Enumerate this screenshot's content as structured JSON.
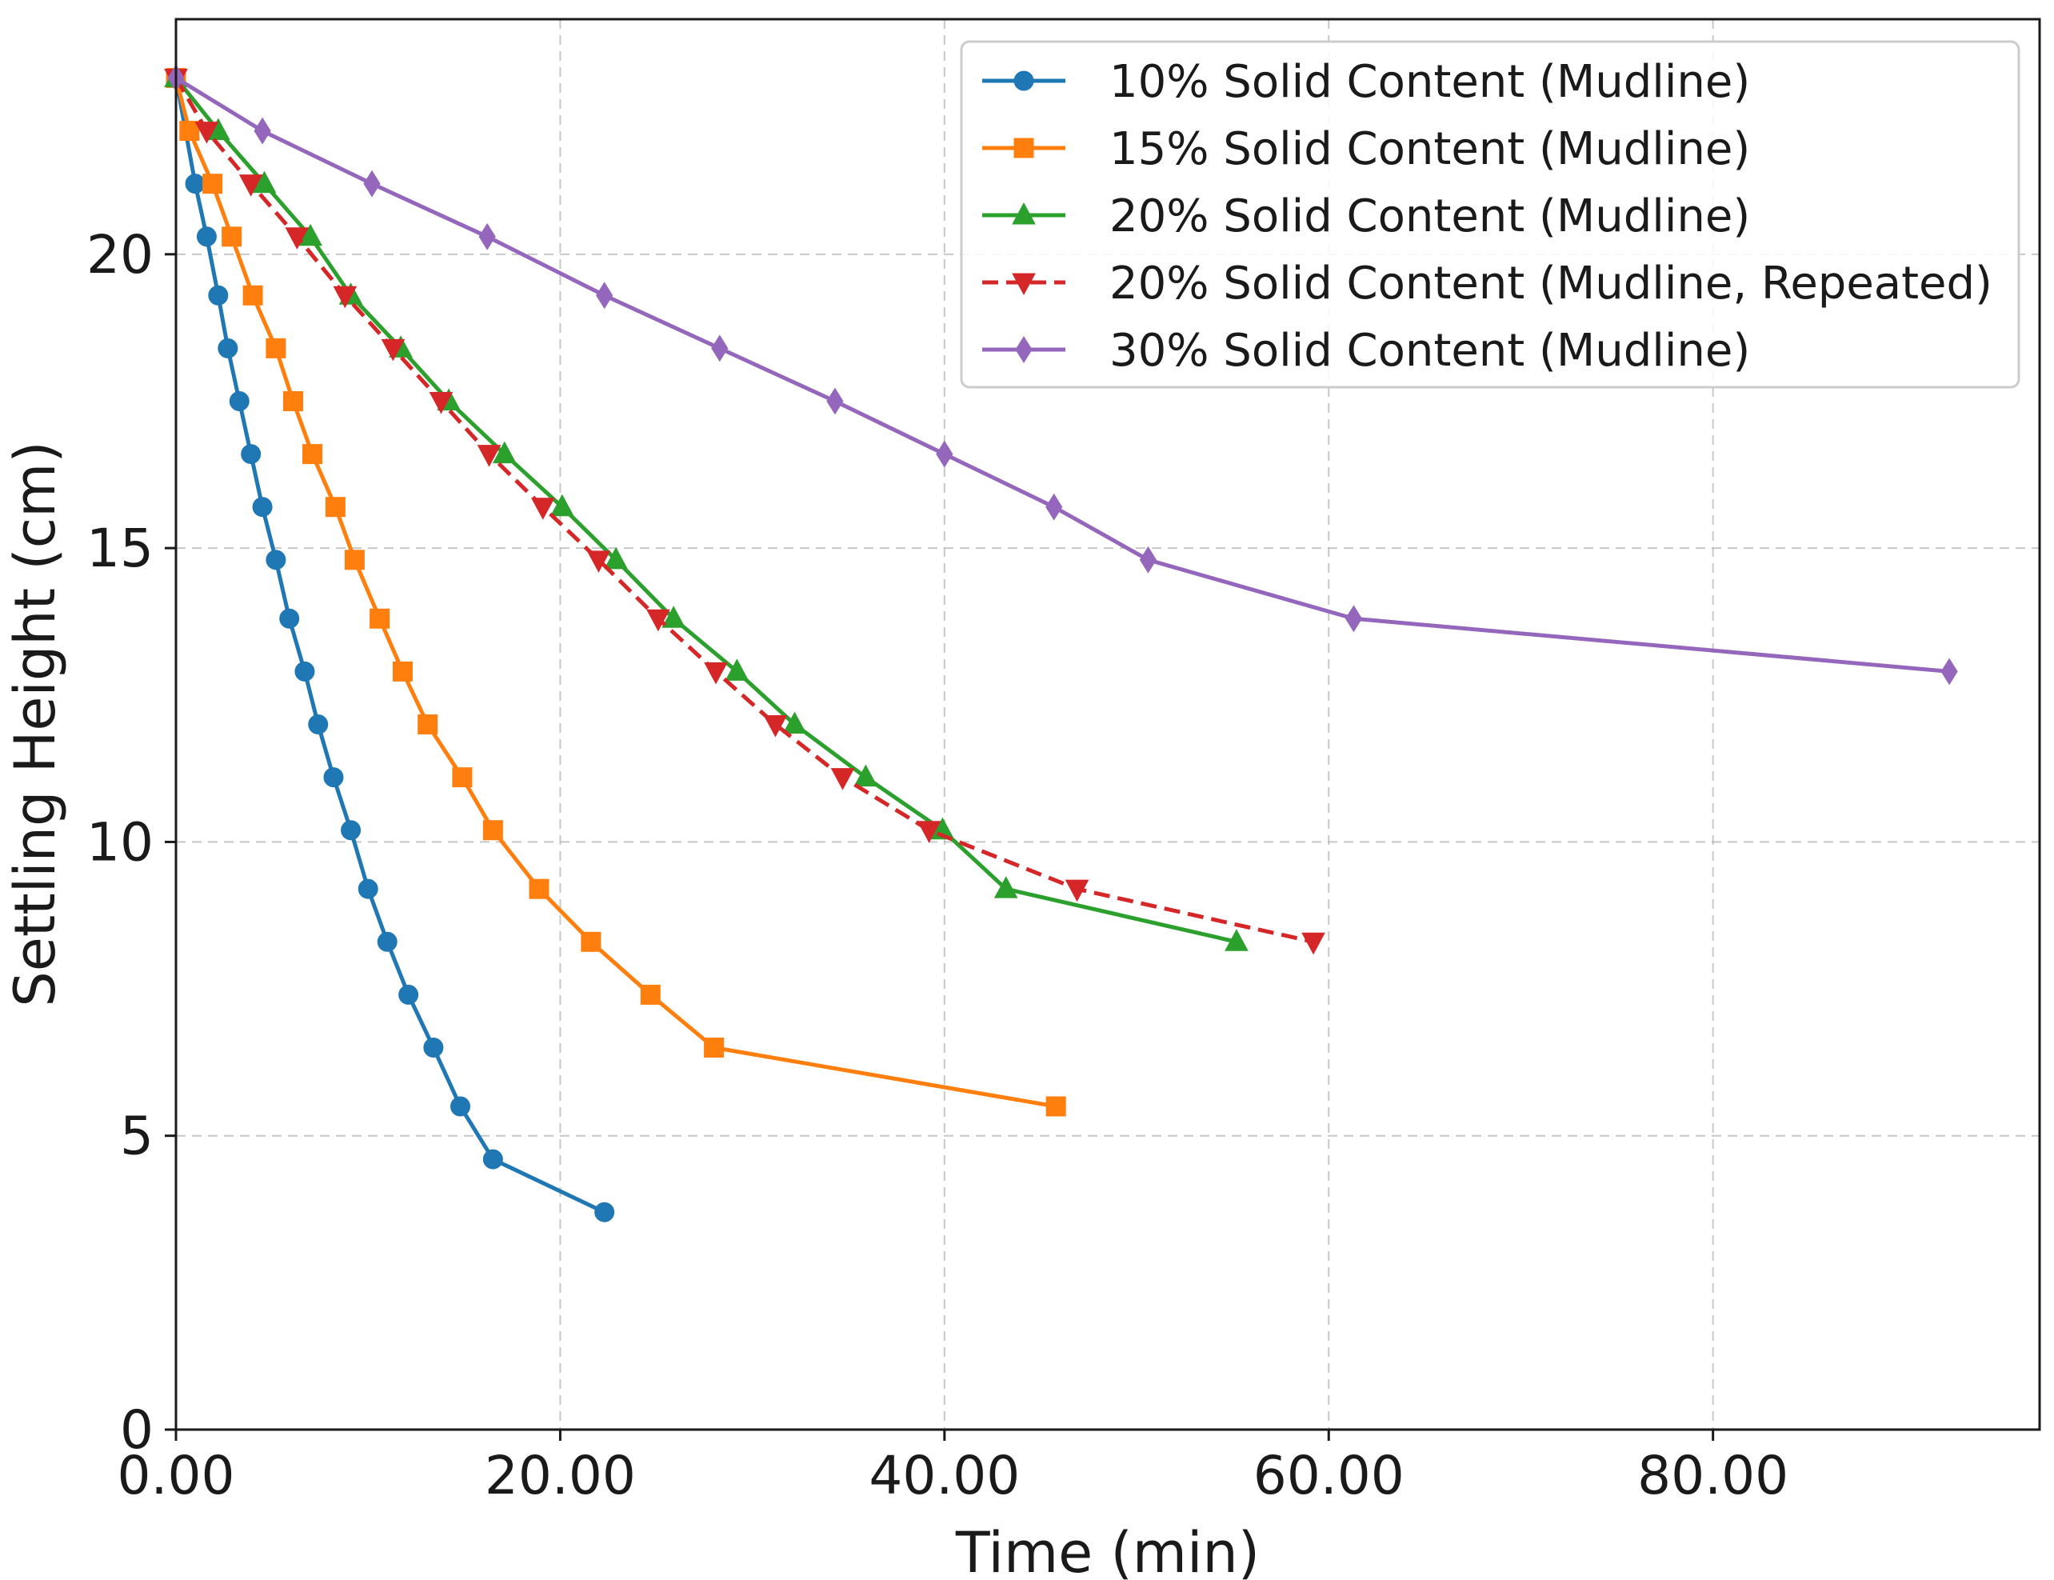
{
  "chart_data": {
    "type": "line",
    "xlabel": "Time (min)",
    "ylabel": "Settling Height (cm)",
    "xlim": [
      0,
      97
    ],
    "ylim": [
      0,
      24
    ],
    "xticks": [
      0,
      20,
      40,
      60,
      80
    ],
    "xtick_labels": [
      "0.00",
      "20.00",
      "40.00",
      "60.00",
      "80.00"
    ],
    "yticks": [
      0,
      5,
      10,
      15,
      20
    ],
    "ytick_labels": [
      "0",
      "5",
      "10",
      "15",
      "20"
    ],
    "grid": true,
    "legend_position": "top-right",
    "series": [
      {
        "name": "10% Solid Content (Mudline)",
        "color": "#1f77b4",
        "marker": "circle",
        "dash": "solid",
        "x": [
          0,
          1.0,
          1.6,
          2.2,
          2.7,
          3.3,
          3.9,
          4.5,
          5.2,
          5.9,
          6.7,
          7.4,
          8.2,
          9.1,
          10.0,
          11.0,
          12.1,
          13.4,
          14.8,
          16.5,
          22.3
        ],
        "y": [
          23.0,
          21.2,
          20.3,
          19.3,
          18.4,
          17.5,
          16.6,
          15.7,
          14.8,
          13.8,
          12.9,
          12.0,
          11.1,
          10.2,
          9.2,
          8.3,
          7.4,
          6.5,
          5.5,
          4.6,
          3.7
        ]
      },
      {
        "name": "15% Solid Content (Mudline)",
        "color": "#ff7f0e",
        "marker": "square",
        "dash": "solid",
        "x": [
          0,
          0.7,
          1.9,
          2.9,
          4.0,
          5.2,
          6.1,
          7.1,
          8.3,
          9.3,
          10.6,
          11.8,
          13.1,
          14.9,
          16.5,
          18.9,
          21.6,
          24.7,
          28.0,
          45.8
        ],
        "y": [
          23.0,
          22.1,
          21.2,
          20.3,
          19.3,
          18.4,
          17.5,
          16.6,
          15.7,
          14.8,
          13.8,
          12.9,
          12.0,
          11.1,
          10.2,
          9.2,
          8.3,
          7.4,
          6.5,
          5.5
        ]
      },
      {
        "name": "20% Solid Content (Mudline)",
        "color": "#2ca02c",
        "marker": "triangle-up",
        "dash": "solid",
        "x": [
          0,
          2.2,
          4.6,
          7.0,
          9.1,
          11.7,
          14.2,
          17.1,
          20.1,
          22.9,
          25.9,
          29.2,
          32.2,
          35.9,
          39.9,
          43.2,
          55.2
        ],
        "y": [
          23.0,
          22.1,
          21.2,
          20.3,
          19.3,
          18.4,
          17.5,
          16.6,
          15.7,
          14.8,
          13.8,
          12.9,
          12.0,
          11.1,
          10.2,
          9.2,
          8.3
        ]
      },
      {
        "name": "20% Solid Content (Mudline, Repeated)",
        "color": "#d62728",
        "marker": "triangle-down",
        "dash": "dashed",
        "x": [
          0,
          1.6,
          3.9,
          6.3,
          8.8,
          11.3,
          13.8,
          16.3,
          19.1,
          22.0,
          25.1,
          28.1,
          31.2,
          34.7,
          39.2,
          46.9,
          59.2
        ],
        "y": [
          23.0,
          22.1,
          21.2,
          20.3,
          19.3,
          18.4,
          17.5,
          16.6,
          15.7,
          14.8,
          13.8,
          12.9,
          12.0,
          11.1,
          10.2,
          9.2,
          8.3
        ]
      },
      {
        "name": "30% Solid Content (Mudline)",
        "color": "#9467bd",
        "marker": "diamond",
        "dash": "solid",
        "x": [
          0,
          4.5,
          10.2,
          16.2,
          22.3,
          28.3,
          34.3,
          40.0,
          45.7,
          50.6,
          61.3,
          92.3
        ],
        "y": [
          23.0,
          22.1,
          21.2,
          20.3,
          19.3,
          18.4,
          17.5,
          16.6,
          15.7,
          14.8,
          13.8,
          12.9
        ]
      }
    ]
  }
}
